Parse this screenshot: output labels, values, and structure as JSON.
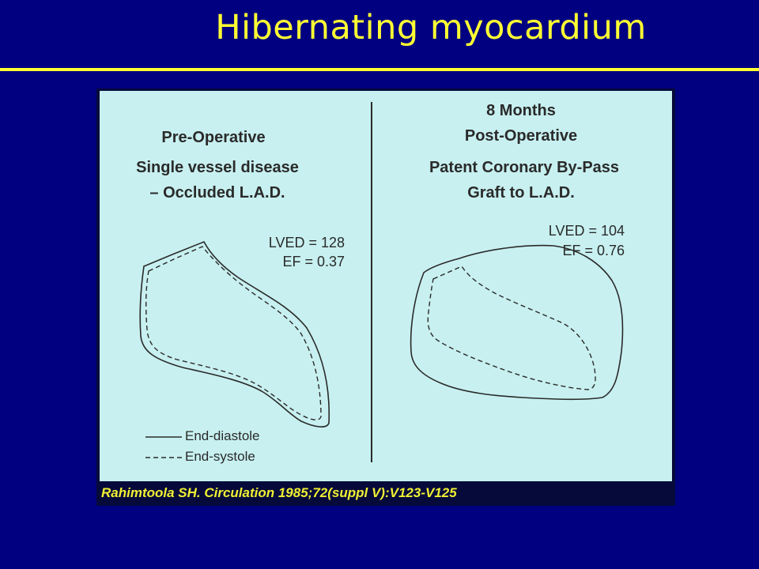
{
  "slide": {
    "title": "Hibernating myocardium"
  },
  "figure": {
    "left_panel": {
      "heading": "Pre-Operative",
      "subheading_1": "Single vessel disease",
      "subheading_2": "– Occluded L.A.D.",
      "lved": "LVED = 128",
      "ef": "EF = 0.37"
    },
    "right_panel": {
      "heading_1": "8 Months",
      "heading_2": "Post-Operative",
      "subheading_1": "Patent Coronary By-Pass",
      "subheading_2": "Graft to L.A.D.",
      "lved": "LVED = 104",
      "ef": "EF = 0.76"
    },
    "legend": {
      "solid_label": "End-diastole",
      "dashed_label": "End-systole"
    },
    "citation": "Rahimtoola SH.  Circulation 1985;72(suppl V):V123-V125"
  },
  "colors": {
    "background": "#000080",
    "title": "#ffff33",
    "panel": "#c8f0f0",
    "ink": "#2a2a2a",
    "citation": "#f0f033"
  }
}
